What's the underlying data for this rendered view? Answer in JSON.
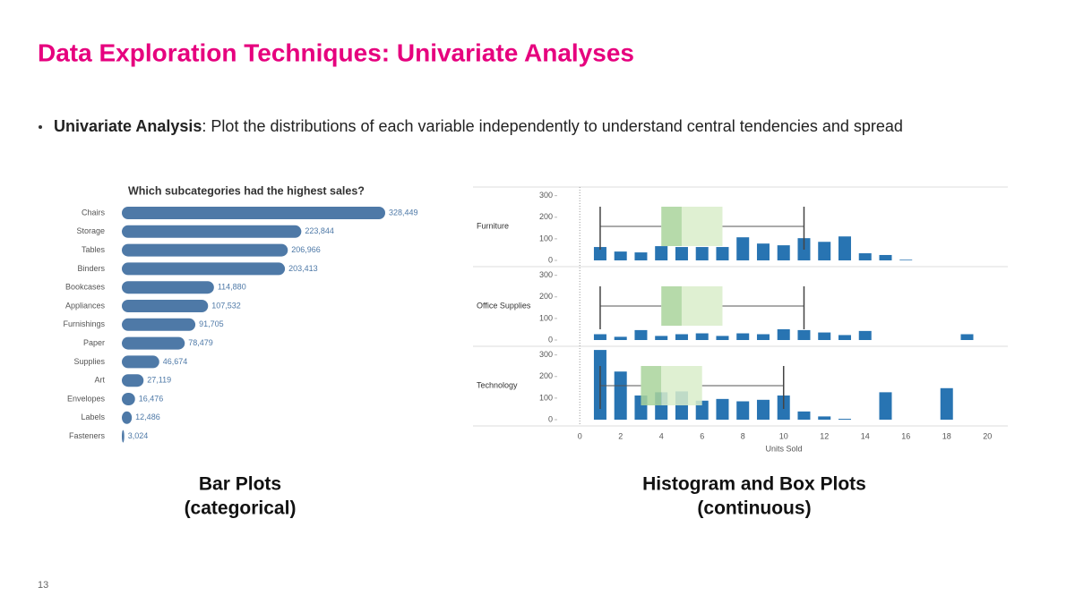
{
  "title": "Data Exploration Techniques: Univariate Analyses",
  "bullet": {
    "term": "Univariate Analysis",
    "text": ": Plot the distributions of each variable independently to understand central tendencies and spread"
  },
  "chart_data": [
    {
      "type": "bar",
      "orientation": "horizontal",
      "title": "Which subcategories had the highest sales?",
      "categories": [
        "Chairs",
        "Storage",
        "Tables",
        "Binders",
        "Bookcases",
        "Appliances",
        "Furnishings",
        "Paper",
        "Supplies",
        "Art",
        "Envelopes",
        "Labels",
        "Fasteners"
      ],
      "values": [
        328449,
        223844,
        206966,
        203413,
        114880,
        107532,
        91705,
        78479,
        46674,
        27119,
        16476,
        12486,
        3024
      ],
      "value_labels": [
        "328,449",
        "223,844",
        "206,966",
        "203,413",
        "114,880",
        "107,532",
        "91,705",
        "78,479",
        "46,674",
        "27,119",
        "16,476",
        "12,486",
        "3,024"
      ],
      "color": "#4e79a7"
    },
    {
      "type": "bar_box",
      "xlabel": "Units Sold",
      "xlim": [
        -0.8,
        21
      ],
      "xticks": [
        0,
        2,
        4,
        6,
        8,
        10,
        12,
        14,
        16,
        18,
        20
      ],
      "ylim": [
        0,
        340
      ],
      "yticks": [
        0,
        100,
        200,
        300
      ],
      "x": [
        1,
        2,
        3,
        4,
        5,
        6,
        7,
        8,
        9,
        10,
        11,
        12,
        13,
        14,
        15,
        16,
        17,
        18,
        19
      ],
      "color": "#2874b2",
      "box_colors": [
        "#a9d39b",
        "#d9edca"
      ],
      "series": [
        {
          "name": "Furniture",
          "values": [
            62,
            41,
            37,
            66,
            62,
            62,
            62,
            107,
            78,
            70,
            103,
            86,
            111,
            33,
            25,
            3,
            0,
            0,
            0
          ],
          "box": {
            "min": 1,
            "q1": 4,
            "median": 5,
            "q3": 7,
            "max": 11
          }
        },
        {
          "name": "Office Supplies",
          "values": [
            27,
            15,
            46,
            19,
            27,
            31,
            19,
            31,
            27,
            50,
            46,
            35,
            23,
            42,
            0,
            0,
            0,
            0,
            27
          ],
          "box": {
            "min": 1,
            "q1": 4,
            "median": 5,
            "q3": 7,
            "max": 11
          }
        },
        {
          "name": "Technology",
          "values": [
            323,
            223,
            112,
            127,
            131,
            88,
            96,
            85,
            92,
            112,
            38,
            15,
            4,
            0,
            127,
            0,
            0,
            146,
            0
          ],
          "box": {
            "min": 1,
            "q1": 3,
            "median": 4,
            "q3": 6,
            "max": 10
          }
        }
      ]
    }
  ],
  "captions": [
    [
      "Bar Plots",
      "(categorical)"
    ],
    [
      "Histogram and Box Plots",
      "(continuous)"
    ]
  ],
  "page_number": "13"
}
